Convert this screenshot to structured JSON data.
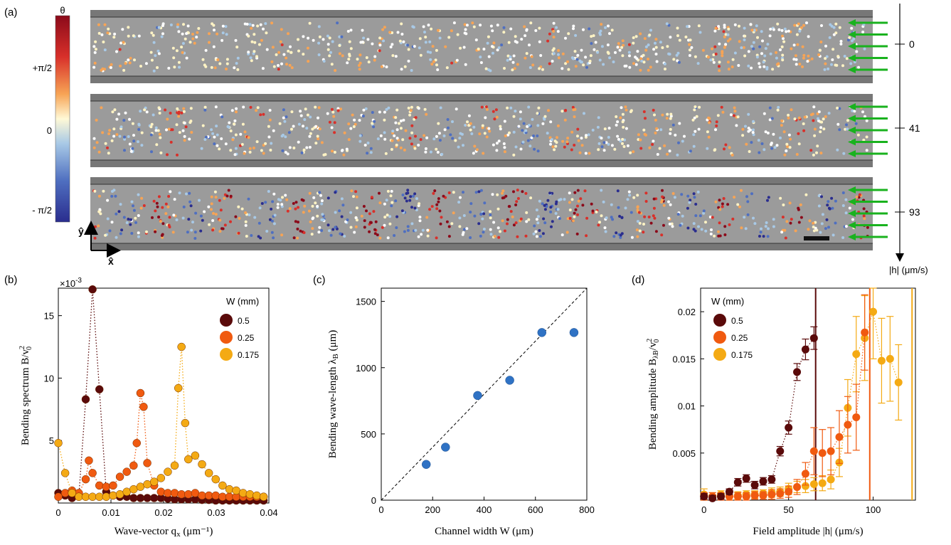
{
  "panel_labels": [
    "(a)",
    "(b)",
    "(c)",
    "(d)"
  ],
  "colorbar": {
    "title": "θ",
    "ticks": [
      "+π/2",
      "0",
      "- π/2"
    ]
  },
  "strips": [
    {
      "field": "0",
      "has_arrows": true
    },
    {
      "field": "41",
      "has_arrows": true
    },
    {
      "field": "93",
      "has_arrows": true
    }
  ],
  "field_axis_label": "|h| (μm/s)",
  "axes_labels": {
    "y": "ŷ",
    "x": "x̂"
  },
  "colors": {
    "series_dark": "#5a0a0a",
    "series_orange": "#f05a10",
    "series_yellow": "#f4aa14",
    "blue_points": "#2f72c4",
    "arrow_green": "#19b21e",
    "strip_gray": "#9b9b9b"
  },
  "chart_data": [
    {
      "panel": "b",
      "type": "scatter",
      "xlabel": "Wave-vector q",
      "xlabel_sub": "x",
      "xlabel_unit": "(μm⁻¹)",
      "ylabel": "Bending spectrum B/v",
      "ylabel_sup": "2",
      "ylabel_sub": "0",
      "exponent_label": "×10",
      "exponent_sup": "-3",
      "xlim": [
        0,
        0.04
      ],
      "ylim": [
        0,
        17.2
      ],
      "xticks": [
        "0",
        "0.01",
        "0.02",
        "0.03",
        "0.04"
      ],
      "yticks": [
        "5",
        "10",
        "15"
      ],
      "legend_title": "W (mm)",
      "legend": [
        "0.5",
        "0.25",
        "0.175"
      ],
      "series": [
        {
          "name": "0.5",
          "x": [
            0,
            0.0013,
            0.0026,
            0.0039,
            0.0052,
            0.0065,
            0.0078,
            0.0091,
            0.0104,
            0.0117,
            0.013,
            0.0143,
            0.0156,
            0.0169,
            0.0182,
            0.0195,
            0.0208,
            0.0221,
            0.0234,
            0.0247,
            0.026,
            0.0273,
            0.0286,
            0.0299,
            0.0312,
            0.0325,
            0.0338,
            0.0351,
            0.0364,
            0.0377,
            0.039
          ],
          "values": [
            0.8,
            0.6,
            0.4,
            0.6,
            8.3,
            17.1,
            9.1,
            0.9,
            0.6,
            0.5,
            0.5,
            0.4,
            0.4,
            0.4,
            0.4,
            0.4,
            0.35,
            0.3,
            0.3,
            0.3,
            0.3,
            0.25,
            0.25,
            0.2,
            0.2,
            0.2,
            0.2,
            0.2,
            0.2,
            0.2,
            0.2
          ]
        },
        {
          "name": "0.25",
          "x": [
            0,
            0.0013,
            0.0026,
            0.0039,
            0.0052,
            0.0058,
            0.0065,
            0.0078,
            0.0091,
            0.0104,
            0.0117,
            0.013,
            0.0143,
            0.0149,
            0.0156,
            0.0162,
            0.0169,
            0.0182,
            0.0195,
            0.0208,
            0.0221,
            0.0234,
            0.0247,
            0.026,
            0.0273,
            0.0286,
            0.0299,
            0.0312,
            0.0325,
            0.0338,
            0.0351,
            0.0364,
            0.0377,
            0.039
          ],
          "values": [
            0.5,
            0.8,
            1.0,
            0.8,
            1.9,
            3.4,
            2.4,
            1.4,
            1.3,
            1.4,
            2.1,
            2.5,
            3.0,
            4.8,
            8.8,
            7.7,
            3.2,
            1.4,
            0.9,
            0.8,
            0.8,
            0.7,
            0.7,
            0.8,
            0.6,
            0.6,
            0.6,
            0.5,
            0.5,
            0.5,
            0.5,
            0.5,
            0.5,
            0.5
          ]
        },
        {
          "name": "0.175",
          "x": [
            0,
            0.0013,
            0.0026,
            0.0039,
            0.0052,
            0.0065,
            0.0078,
            0.0091,
            0.0104,
            0.0117,
            0.013,
            0.0143,
            0.0156,
            0.0169,
            0.0182,
            0.0195,
            0.0208,
            0.0221,
            0.0228,
            0.0234,
            0.0241,
            0.0247,
            0.026,
            0.0273,
            0.0286,
            0.0299,
            0.0312,
            0.0325,
            0.0338,
            0.0351,
            0.0364,
            0.0377,
            0.039
          ],
          "values": [
            4.8,
            2.4,
            0.8,
            0.5,
            0.5,
            0.5,
            0.5,
            0.5,
            0.6,
            0.7,
            0.9,
            1.1,
            1.3,
            1.5,
            1.7,
            2.0,
            2.5,
            3.0,
            9.2,
            12.5,
            6.4,
            3.5,
            3.8,
            3.1,
            2.4,
            1.9,
            1.4,
            1.1,
            1.0,
            0.8,
            0.7,
            0.6,
            0.5
          ]
        }
      ]
    },
    {
      "panel": "c",
      "type": "scatter",
      "xlabel": "Channel width W (μm)",
      "ylabel": "Bending wave-length λ",
      "ylabel_sub": "B",
      "ylabel_unit": "(μm)",
      "xlim": [
        0,
        800
      ],
      "ylim": [
        0,
        1600
      ],
      "xticks": [
        "0",
        "200",
        "400",
        "600",
        "800"
      ],
      "yticks": [
        "0",
        "500",
        "1000",
        "1500"
      ],
      "x": [
        175,
        250,
        375,
        500,
        625,
        750
      ],
      "values": [
        270,
        400,
        790,
        905,
        1265,
        1265
      ],
      "fit_line": {
        "x": [
          0,
          800
        ],
        "y": [
          0,
          1600
        ]
      }
    },
    {
      "panel": "d",
      "type": "scatter",
      "xlabel": "Field amplitude |h| (μm/s)",
      "ylabel": "Bending amplitude B",
      "ylabel_sub": "λB",
      "ylabel_tail": "/v",
      "ylabel_sup": "2",
      "ylabel_sub2": "0",
      "xlim": [
        -2,
        125
      ],
      "ylim": [
        0,
        0.0225
      ],
      "xticks": [
        "0",
        "50",
        "100"
      ],
      "yticks": [
        "0.005",
        "0.01",
        "0.015",
        "0.02"
      ],
      "legend_title": "W (mm)",
      "legend": [
        "0.5",
        "0.25",
        "0.175"
      ],
      "vlines": [
        {
          "series": "0.5",
          "x": 66
        },
        {
          "series": "0.25",
          "x": 98
        },
        {
          "series": "0.175",
          "x": 123
        }
      ],
      "series": [
        {
          "name": "0.5",
          "x": [
            0,
            5,
            10,
            15,
            20,
            25,
            30,
            35,
            40,
            45,
            50,
            55,
            60,
            65
          ],
          "values": [
            0.0004,
            0.0002,
            0.0004,
            0.0009,
            0.0019,
            0.0023,
            0.0016,
            0.002,
            0.0022,
            0.0052,
            0.0077,
            0.0136,
            0.016,
            0.0172
          ],
          "err": [
            0.0003,
            0.0003,
            0.0003,
            0.0003,
            0.0004,
            0.0004,
            0.0004,
            0.0004,
            0.0004,
            0.0005,
            0.0007,
            0.0009,
            0.0011,
            0.0012
          ]
        },
        {
          "name": "0.25",
          "x": [
            0,
            5,
            10,
            15,
            20,
            25,
            30,
            35,
            40,
            45,
            50,
            55,
            60,
            65,
            70,
            75,
            80,
            85,
            90,
            95
          ],
          "values": [
            0.0004,
            0.0004,
            0.0004,
            0.0004,
            0.0004,
            0.0004,
            0.0005,
            0.0005,
            0.0006,
            0.0007,
            0.0009,
            0.0014,
            0.0028,
            0.0052,
            0.005,
            0.0052,
            0.0067,
            0.008,
            0.0088,
            0.0178
          ],
          "err": [
            0.0004,
            0.0004,
            0.0004,
            0.0004,
            0.0004,
            0.0004,
            0.0004,
            0.0004,
            0.0005,
            0.0005,
            0.0006,
            0.0008,
            0.0012,
            0.0025,
            0.0025,
            0.0025,
            0.0028,
            0.003,
            0.0035,
            0.004
          ]
        },
        {
          "name": "0.175",
          "x": [
            0,
            5,
            10,
            15,
            20,
            25,
            30,
            35,
            40,
            45,
            50,
            55,
            60,
            65,
            70,
            75,
            80,
            85,
            90,
            95,
            100,
            105,
            110,
            115
          ],
          "values": [
            0.0006,
            0.0004,
            0.0006,
            0.0004,
            0.0005,
            0.0006,
            0.0006,
            0.0007,
            0.0008,
            0.0009,
            0.0012,
            0.0014,
            0.0015,
            0.0017,
            0.0018,
            0.0022,
            0.004,
            0.0098,
            0.0155,
            0.0172,
            0.02,
            0.0148,
            0.015,
            0.0125
          ],
          "err": [
            0.0006,
            0.0004,
            0.0004,
            0.0004,
            0.0004,
            0.0004,
            0.0004,
            0.0004,
            0.0005,
            0.0005,
            0.0006,
            0.0006,
            0.0007,
            0.0007,
            0.0008,
            0.001,
            0.0015,
            0.003,
            0.004,
            0.0045,
            0.005,
            0.0045,
            0.0045,
            0.004
          ]
        }
      ]
    }
  ]
}
